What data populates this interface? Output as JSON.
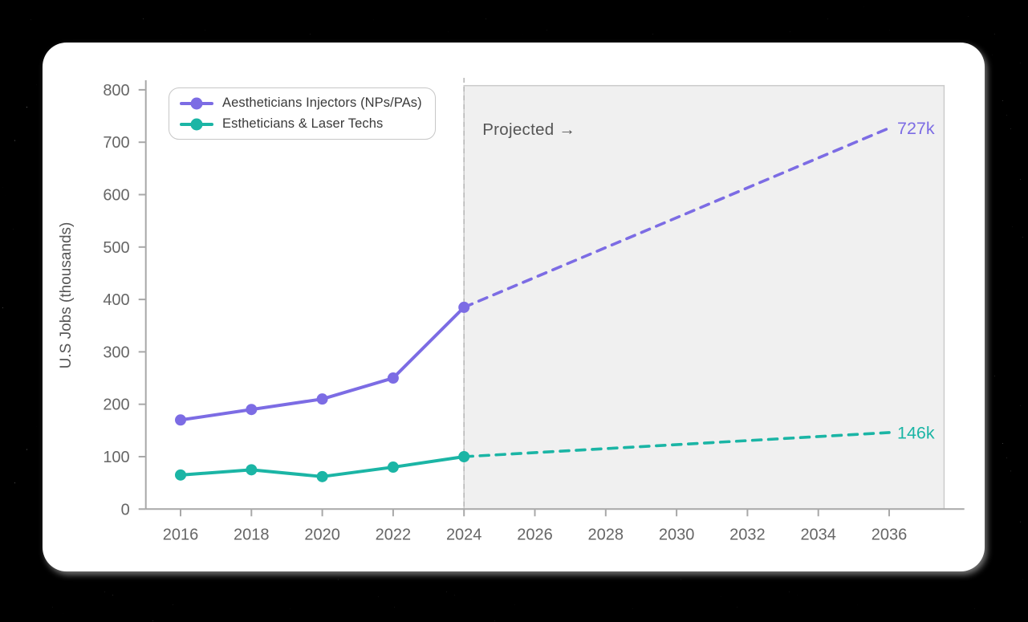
{
  "theme": {
    "page_bg": "#000000",
    "card_bg": "#ffffff",
    "axis_color": "#a8a8a8",
    "tick_text_color": "#666666",
    "axis_title_color": "#555555",
    "projected_text_color": "#555555",
    "region_fill": "#f0f0f0",
    "region_border": "#cbcbcb",
    "divider_color": "#b8b8b8",
    "legend_border": "#c7c7c7",
    "legend_text": "#3a3a3a"
  },
  "chart_data": {
    "type": "line",
    "title": "",
    "xlabel": "",
    "ylabel": "U.S Jobs (thousands)",
    "ylim": [
      0,
      800
    ],
    "xlim": [
      2015,
      2038
    ],
    "yticks": [
      0,
      100,
      200,
      300,
      400,
      500,
      600,
      700,
      800
    ],
    "xticks": [
      2016,
      2018,
      2020,
      2022,
      2024,
      2026,
      2028,
      2030,
      2032,
      2034,
      2036
    ],
    "grid": false,
    "legend_position": "top-left",
    "projection": {
      "start_year": 2024,
      "region_end_year": 2037.55,
      "label": "Projected →"
    },
    "series": [
      {
        "name": "Aestheticians Injectors (NPs/PAs)",
        "color": "#7C6CE4",
        "actual_x": [
          2016,
          2018,
          2020,
          2022,
          2024
        ],
        "actual_y": [
          170,
          190,
          210,
          250,
          385
        ],
        "projected_x": [
          2024,
          2036
        ],
        "projected_y": [
          385,
          727
        ],
        "end_label": "727k"
      },
      {
        "name": "Estheticians & Laser Techs",
        "color": "#1BB5A5",
        "actual_x": [
          2016,
          2018,
          2020,
          2022,
          2024
        ],
        "actual_y": [
          65,
          75,
          62,
          80,
          100
        ],
        "projected_x": [
          2024,
          2036
        ],
        "projected_y": [
          100,
          146
        ],
        "end_label": "146k"
      }
    ]
  }
}
